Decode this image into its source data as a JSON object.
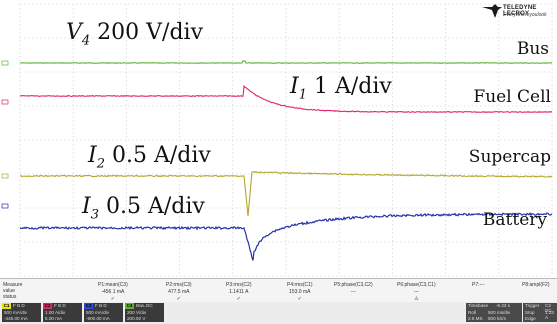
{
  "annotations": {
    "v4": {
      "sym": "V",
      "sub": "4",
      "unit": "200 V/div"
    },
    "i1": {
      "sym": "I",
      "sub": "1",
      "unit": "1 A/div"
    },
    "i2": {
      "sym": "I",
      "sub": "2",
      "unit": "0.5 A/div"
    },
    "i3": {
      "sym": "I",
      "sub": "3",
      "unit": "0.5 A/div"
    },
    "bus": "Bus",
    "fuel_cell": "Fuel Cell",
    "supercap": "Supercap",
    "battery": "Battery"
  },
  "logo": {
    "brand": "TELEDYNE LECROY",
    "tagline": "Everywhereyoulook"
  },
  "trace_colors": {
    "bus": "#5cb335",
    "fuel_cell": "#e2226f",
    "supercap": "#b3a82a",
    "battery": "#2232a8",
    "grid": "#c8c8c8"
  },
  "measure": {
    "row_labels": [
      "Measure",
      "value",
      "status"
    ],
    "columns": [
      {
        "name": "P1:mean(C3)",
        "value": "-456.1 mA",
        "status": "✓"
      },
      {
        "name": "P2:rms(C3)",
        "value": "477.5 mA",
        "status": "✓"
      },
      {
        "name": "P3:rms(C2)",
        "value": "1.1411 A",
        "status": "✓"
      },
      {
        "name": "P4:rms(C1)",
        "value": "153.0 mA",
        "status": "✓"
      },
      {
        "name": "P5:phase(C3,C2)",
        "value": "---",
        "status": ""
      },
      {
        "name": "P6:phase(C3,C1)",
        "value": "---",
        "status": "⚠"
      },
      {
        "name": "P7:---",
        "value": "",
        "status": ""
      },
      {
        "name": "P8:ampl(F2)",
        "value": "",
        "status": ""
      }
    ]
  },
  "channels": [
    {
      "tag": "C1",
      "header": "F B D",
      "line1": "500 mA/div",
      "line2": "-445.00 mA",
      "color": "#e8e020"
    },
    {
      "tag": "C2",
      "header": "F B D",
      "line1": "1.00 A/div",
      "line2": "5.00 mA",
      "color": "#e2226f"
    },
    {
      "tag": "C3",
      "header": "F B D",
      "line1": "500 mA/div",
      "line2": "-900.00 mA",
      "color": "#3048d0"
    },
    {
      "tag": "C4",
      "header": "BwL DC",
      "line1": "200 V/div",
      "line2": "200.92 V",
      "color": "#5cb335"
    }
  ],
  "timebase": {
    "title": "Timebase",
    "offset": "-5.23 s",
    "trigger_title": "Trigger",
    "trigger_val": "C2 DC",
    "r1a": "Roll",
    "r1b": "500 ms/div",
    "r2a": "2.5 MS",
    "r2b": "500 kS/s",
    "t1": "Stop",
    "t2": "Edge",
    "t3": "1.23 A"
  },
  "chart_data": {
    "type": "line",
    "series": [
      {
        "name": "Bus",
        "label": "V4 200 V/div",
        "values": [
          [
            0,
            1
          ],
          [
            1,
            1
          ]
        ]
      },
      {
        "name": "Fuel Cell",
        "label": "I1 1 A/div"
      },
      {
        "name": "Supercap",
        "label": "I2 0.5 A/div"
      },
      {
        "name": "Battery",
        "label": "I3 0.5 A/div"
      }
    ],
    "grid": true
  }
}
